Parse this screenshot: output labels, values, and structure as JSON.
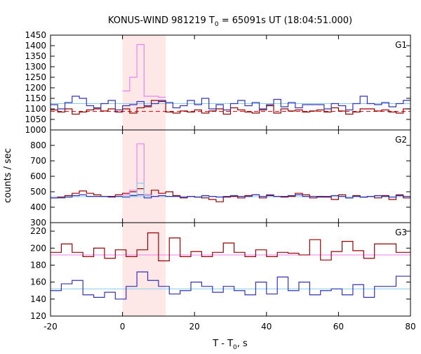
{
  "chart_data": {
    "type": "line",
    "title_main": "KONUS-WIND 981219 T",
    "title_sub": "0",
    "title_rest": " = 65091s UT (18:04:51.000)",
    "xlabel_main": "T - T",
    "xlabel_sub": "0",
    "xlabel_rest": ", s",
    "ylabel": "counts / sec",
    "xlim": [
      -20,
      80
    ],
    "xticks": [
      "-20",
      "0",
      "20",
      "40",
      "60",
      "80"
    ],
    "shaded_interval": [
      0,
      12
    ],
    "colors": {
      "shade": "#fde7e7",
      "dark_red": "#990000",
      "dark_blue": "#3333bb",
      "pink": "#ee82ee",
      "light_blue": "#87ceeb",
      "red_dashed": "#cc0000"
    },
    "panels": [
      {
        "label": "G1",
        "ylim": [
          1000,
          1450
        ],
        "yticks": [
          "1000",
          "1050",
          "1100",
          "1150",
          "1200",
          "1250",
          "1300",
          "1350",
          "1400",
          "1450"
        ],
        "bin_edges": [
          -20,
          -18,
          -16,
          -14,
          -12,
          -10,
          -8,
          -6,
          -4,
          -2,
          0,
          2,
          4,
          6,
          8,
          10,
          12,
          14,
          16,
          18,
          20,
          22,
          24,
          26,
          28,
          30,
          32,
          34,
          36,
          38,
          40,
          42,
          44,
          46,
          48,
          50,
          52,
          54,
          56,
          58,
          60,
          62,
          64,
          66,
          68,
          70,
          72,
          74,
          76,
          78,
          80
        ],
        "series": [
          {
            "color_key": "dark_red",
            "values": [
              1095,
              1085,
              1100,
              1075,
              1085,
              1095,
              1100,
              1090,
              1100,
              1085,
              1100,
              1080,
              1105,
              1110,
              1140,
              1135,
              1085,
              1080,
              1090,
              1085,
              1095,
              1080,
              1090,
              1100,
              1075,
              1105,
              1095,
              1085,
              1080,
              1095,
              1115,
              1080,
              1100,
              1090,
              1095,
              1085,
              1090,
              1095,
              1085,
              1105,
              1090,
              1075,
              1085,
              1100,
              1100,
              1090,
              1095,
              1085,
              1080,
              1100
            ]
          },
          {
            "color_key": "dark_blue",
            "values": [
              1120,
              1100,
              1130,
              1160,
              1150,
              1115,
              1105,
              1125,
              1140,
              1095,
              1115,
              1120,
              1135,
              1115,
              1125,
              1140,
              1130,
              1105,
              1115,
              1140,
              1120,
              1150,
              1100,
              1120,
              1095,
              1125,
              1140,
              1115,
              1130,
              1100,
              1120,
              1145,
              1110,
              1130,
              1105,
              1120,
              1120,
              1120,
              1100,
              1125,
              1115,
              1095,
              1125,
              1160,
              1125,
              1120,
              1130,
              1110,
              1125,
              1140
            ]
          },
          {
            "color_key": "pink",
            "values": [
              null,
              null,
              null,
              null,
              null,
              null,
              null,
              null,
              null,
              null,
              1185,
              1250,
              1405,
              1160,
              1160,
              1155,
              null,
              null,
              null,
              null,
              null,
              null,
              null,
              null,
              null,
              null,
              null,
              null,
              null,
              null,
              null,
              null,
              null,
              null,
              null,
              null,
              null,
              null,
              null,
              null,
              null,
              null,
              null,
              null,
              null,
              null,
              null,
              null,
              null,
              null
            ]
          }
        ],
        "fits": [
          {
            "color_key": "light_blue",
            "value": 1125,
            "dashed": false
          },
          {
            "color_key": "red_dashed",
            "value": 1088,
            "dashed": true
          }
        ]
      },
      {
        "label": "G2",
        "ylim": [
          300,
          900
        ],
        "yticks": [
          "300",
          "400",
          "500",
          "600",
          "700",
          "800"
        ],
        "bin_edges": [
          -20,
          -18,
          -16,
          -14,
          -12,
          -10,
          -8,
          -6,
          -4,
          -2,
          0,
          2,
          4,
          6,
          8,
          10,
          12,
          14,
          16,
          18,
          20,
          22,
          24,
          26,
          28,
          30,
          32,
          34,
          36,
          38,
          40,
          42,
          44,
          46,
          48,
          50,
          52,
          54,
          56,
          58,
          60,
          62,
          64,
          66,
          68,
          70,
          72,
          74,
          76,
          78,
          80
        ],
        "series": [
          {
            "color_key": "dark_red",
            "values": [
              460,
              465,
              475,
              490,
              505,
              490,
              480,
              470,
              470,
              480,
              490,
              500,
              520,
              480,
              510,
              490,
              500,
              475,
              460,
              470,
              465,
              460,
              450,
              435,
              465,
              470,
              460,
              475,
              480,
              460,
              475,
              470,
              465,
              470,
              490,
              480,
              460,
              470,
              465,
              450,
              480,
              460,
              475,
              465,
              470,
              460,
              475,
              450,
              480,
              460
            ]
          },
          {
            "color_key": "dark_blue",
            "values": [
              460,
              460,
              465,
              475,
              480,
              470,
              470,
              470,
              465,
              470,
              465,
              475,
              480,
              460,
              470,
              475,
              470,
              470,
              465,
              470,
              465,
              475,
              470,
              465,
              470,
              475,
              470,
              470,
              480,
              470,
              480,
              470,
              470,
              475,
              480,
              470,
              470,
              465,
              470,
              475,
              470,
              460,
              470,
              465,
              470,
              475,
              470,
              465,
              475,
              470
            ]
          },
          {
            "color_key": "pink",
            "values": [
              null,
              null,
              null,
              null,
              null,
              null,
              null,
              null,
              null,
              null,
              480,
              510,
              810,
              480,
              null,
              null,
              null,
              null,
              null,
              null,
              null,
              null,
              null,
              null,
              null,
              null,
              null,
              null,
              null,
              null,
              null,
              null,
              null,
              null,
              null,
              null,
              null,
              null,
              null,
              null,
              null,
              null,
              null,
              null,
              null,
              null,
              null,
              null,
              null,
              null
            ]
          },
          {
            "color_key": "light_blue",
            "values": [
              null,
              null,
              null,
              null,
              null,
              null,
              null,
              null,
              null,
              null,
              470,
              480,
              555,
              475,
              null,
              null,
              null,
              null,
              null,
              null,
              null,
              null,
              null,
              null,
              null,
              null,
              null,
              null,
              null,
              null,
              null,
              null,
              null,
              null,
              null,
              null,
              null,
              null,
              null,
              null,
              null,
              null,
              null,
              null,
              null,
              null,
              null,
              null,
              null,
              null
            ]
          }
        ],
        "fits": [
          {
            "color_key": "light_blue",
            "value": 468,
            "dashed": false
          }
        ]
      },
      {
        "label": "G3",
        "ylim": [
          120,
          230
        ],
        "yticks": [
          "120",
          "140",
          "160",
          "180",
          "200",
          "220"
        ],
        "bin_edges": [
          -20,
          -17,
          -14,
          -11,
          -8,
          -5,
          -2,
          1,
          4,
          7,
          10,
          13,
          16,
          19,
          22,
          25,
          28,
          31,
          34,
          37,
          40,
          43,
          46,
          49,
          52,
          55,
          58,
          61,
          64,
          67,
          70,
          73,
          76,
          80
        ],
        "series": [
          {
            "color_key": "dark_red",
            "values": [
              195,
              205,
              195,
              190,
              200,
              188,
              198,
              190,
              198,
              218,
              185,
              212,
              190,
              196,
              190,
              195,
              206,
              195,
              190,
              198,
              190,
              195,
              194,
              192,
              210,
              186,
              196,
              208,
              197,
              188,
              205,
              205,
              195
            ]
          },
          {
            "color_key": "dark_blue",
            "values": [
              150,
              158,
              162,
              145,
              142,
              148,
              140,
              155,
              172,
              162,
              155,
              146,
              150,
              160,
              155,
              148,
              155,
              150,
              145,
              160,
              146,
              166,
              150,
              160,
              145,
              150,
              152,
              145,
              157,
              142,
              155,
              155,
              167
            ]
          }
        ],
        "fits": [
          {
            "color_key": "pink",
            "value": 192,
            "dashed": false
          },
          {
            "color_key": "light_blue",
            "value": 152,
            "dashed": false
          }
        ]
      }
    ]
  }
}
